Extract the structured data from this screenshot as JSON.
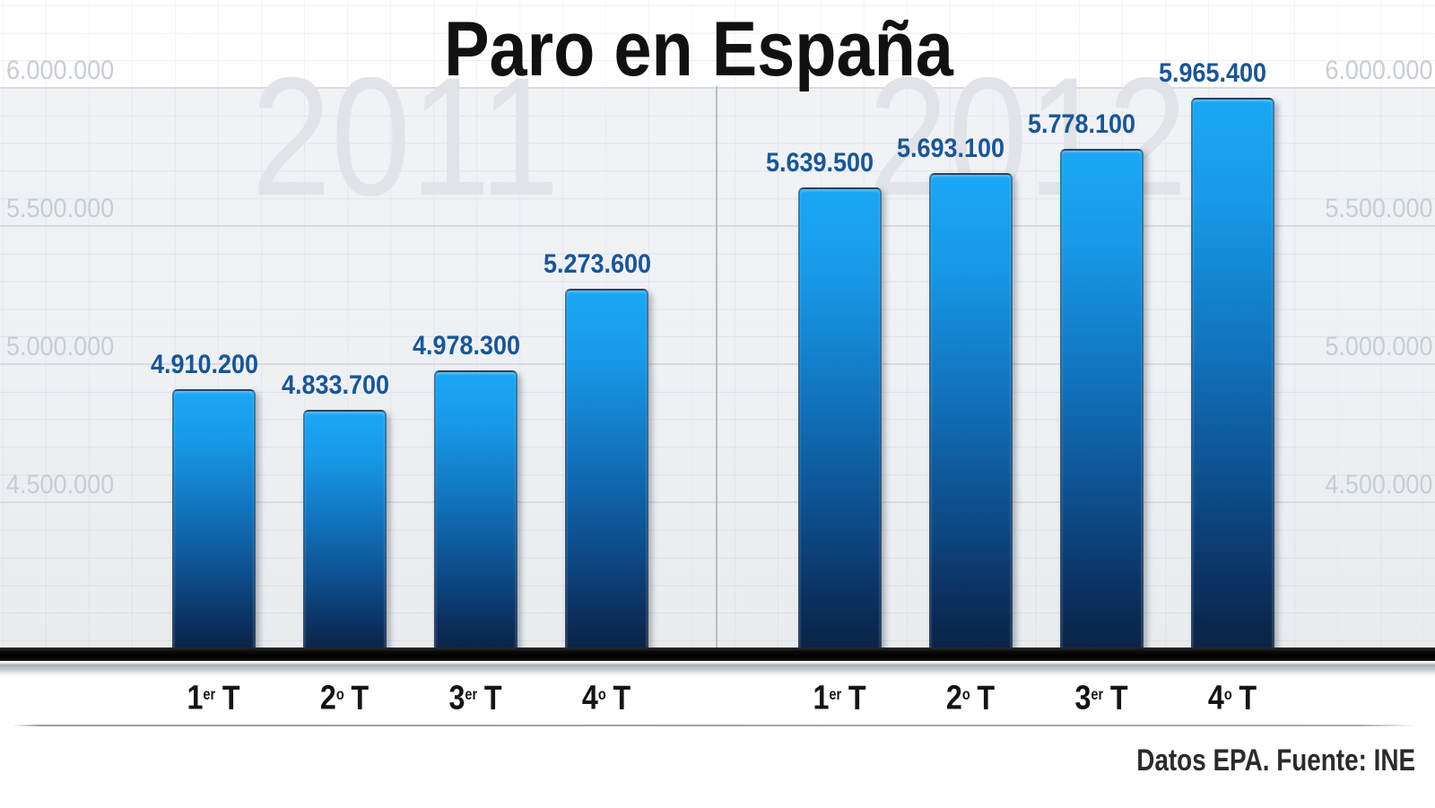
{
  "title": "Paro en España",
  "source_note": "Datos EPA. Fuente: INE",
  "y_axis": {
    "ticks": [
      {
        "label": "6.000.000",
        "value": 6000000
      },
      {
        "label": "5.500.000",
        "value": 5500000
      },
      {
        "label": "5.000.000",
        "value": 5000000
      },
      {
        "label": "4.500.000",
        "value": 4500000
      }
    ],
    "sides": "both"
  },
  "chart_data": {
    "type": "bar",
    "title": "Paro en España",
    "xlabel": "",
    "ylabel": "",
    "ylim": [
      4013000,
      6318000
    ],
    "grid": true,
    "legend_position": "none",
    "groups": [
      {
        "year": "2011",
        "categories": [
          {
            "label": "1er T",
            "num": "1",
            "sup": "er",
            "unit": "T"
          },
          {
            "label": "2º T",
            "num": "2",
            "sup": "o",
            "unit": "T"
          },
          {
            "label": "3er T",
            "num": "3",
            "sup": "er",
            "unit": "T"
          },
          {
            "label": "4º T",
            "num": "4",
            "sup": "o",
            "unit": "T"
          }
        ],
        "values": [
          4910200,
          4833700,
          4978300,
          5273600
        ],
        "value_labels": [
          "4.910.200",
          "4.833.700",
          "4.978.300",
          "5.273.600"
        ]
      },
      {
        "year": "2012",
        "categories": [
          {
            "label": "1er T",
            "num": "1",
            "sup": "er",
            "unit": "T"
          },
          {
            "label": "2º T",
            "num": "2",
            "sup": "o",
            "unit": "T"
          },
          {
            "label": "3er T",
            "num": "3",
            "sup": "er",
            "unit": "T"
          },
          {
            "label": "4º T",
            "num": "4",
            "sup": "o",
            "unit": "T"
          }
        ],
        "values": [
          5639500,
          5693100,
          5778100,
          5965400
        ],
        "value_labels": [
          "5.639.500",
          "5.693.100",
          "5.778.100",
          "5.965.400"
        ]
      }
    ],
    "colors": {
      "bar_top": "#1ba7f5",
      "bar_bottom": "#0a2240",
      "value_label": "#1a5696",
      "axis_tick_label": "#c7cdd4",
      "watermark": "#e0e3e7",
      "baseline": "#000000"
    }
  }
}
